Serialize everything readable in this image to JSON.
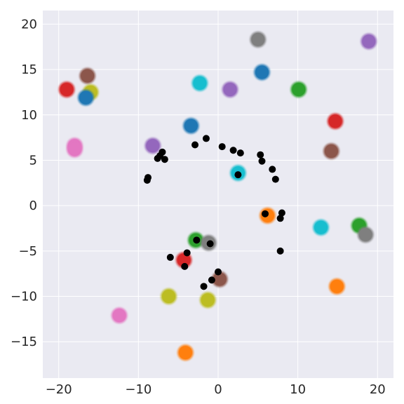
{
  "chart_data": {
    "type": "scatter",
    "title": "",
    "xlabel": "",
    "ylabel": "",
    "xlim": [
      -22,
      22
    ],
    "ylim": [
      -19,
      21.5
    ],
    "grid": true,
    "x_ticks": [
      -20,
      -10,
      0,
      10,
      20
    ],
    "x_tick_labels": [
      "−20",
      "−10",
      "0",
      "10",
      "20"
    ],
    "y_ticks": [
      -15,
      -10,
      -5,
      0,
      5,
      10,
      15,
      20
    ],
    "y_tick_labels": [
      "−15",
      "−10",
      "−5",
      "0",
      "5",
      "10",
      "15",
      "20"
    ],
    "colors": {
      "background": "#eaeaf2",
      "grid": "#ffffff",
      "black_points": "#000000"
    },
    "clusters": [
      {
        "color": "#7f7f7f",
        "x": 5.0,
        "y": 18.3
      },
      {
        "color": "#9467bd",
        "x": 18.9,
        "y": 18.1
      },
      {
        "color": "#8c564b",
        "x": -16.4,
        "y": 14.3
      },
      {
        "color": "#1f77b4",
        "x": 5.5,
        "y": 14.7
      },
      {
        "color": "#d62728",
        "x": -19.0,
        "y": 12.8
      },
      {
        "color": "#bcbd22",
        "x": -16.0,
        "y": 12.5
      },
      {
        "color": "#1f77b4",
        "x": -16.6,
        "y": 11.9
      },
      {
        "color": "#17becf",
        "x": -2.3,
        "y": 13.5
      },
      {
        "color": "#9467bd",
        "x": 1.5,
        "y": 12.8
      },
      {
        "color": "#2ca02c",
        "x": 10.1,
        "y": 12.8
      },
      {
        "color": "#d62728",
        "x": 14.7,
        "y": 9.3
      },
      {
        "color": "#1f77b4",
        "x": -3.4,
        "y": 8.8
      },
      {
        "color": "#e377c2",
        "x": -18.0,
        "y": 6.6
      },
      {
        "color": "#e377c2",
        "x": -18.0,
        "y": 6.2
      },
      {
        "color": "#9467bd",
        "x": -8.2,
        "y": 6.6
      },
      {
        "color": "#8c564b",
        "x": 14.2,
        "y": 6.0
      },
      {
        "color": "#17becf",
        "x": 2.5,
        "y": 3.6
      },
      {
        "color": "#ff7f0e",
        "x": 6.2,
        "y": -1.1
      },
      {
        "color": "#17becf",
        "x": 12.9,
        "y": -2.4
      },
      {
        "color": "#2ca02c",
        "x": 17.7,
        "y": -2.2
      },
      {
        "color": "#7f7f7f",
        "x": 18.5,
        "y": -3.2
      },
      {
        "color": "#2ca02c",
        "x": -2.8,
        "y": -3.8
      },
      {
        "color": "#7f7f7f",
        "x": -1.2,
        "y": -4.1
      },
      {
        "color": "#d62728",
        "x": -4.3,
        "y": -6.0
      },
      {
        "color": "#8c564b",
        "x": 0.2,
        "y": -8.1
      },
      {
        "color": "#bcbd22",
        "x": -6.2,
        "y": -10.0
      },
      {
        "color": "#bcbd22",
        "x": -1.3,
        "y": -10.4
      },
      {
        "color": "#ff7f0e",
        "x": 14.9,
        "y": -8.9
      },
      {
        "color": "#e377c2",
        "x": -12.4,
        "y": -12.1
      },
      {
        "color": "#ff7f0e",
        "x": -4.1,
        "y": -16.2
      }
    ],
    "black_points": [
      {
        "x": -8.9,
        "y": 2.8
      },
      {
        "x": -8.8,
        "y": 3.1
      },
      {
        "x": -7.6,
        "y": 5.2
      },
      {
        "x": -7.3,
        "y": 5.5
      },
      {
        "x": -7.0,
        "y": 5.9
      },
      {
        "x": -6.7,
        "y": 5.1
      },
      {
        "x": -2.9,
        "y": 6.7
      },
      {
        "x": -1.5,
        "y": 7.4
      },
      {
        "x": 0.5,
        "y": 6.5
      },
      {
        "x": 1.9,
        "y": 6.1
      },
      {
        "x": 2.8,
        "y": 5.8
      },
      {
        "x": 5.3,
        "y": 5.6
      },
      {
        "x": 5.5,
        "y": 4.9
      },
      {
        "x": 6.8,
        "y": 4.0
      },
      {
        "x": 7.2,
        "y": 2.9
      },
      {
        "x": 2.5,
        "y": 3.4
      },
      {
        "x": 5.9,
        "y": -0.9
      },
      {
        "x": 8.0,
        "y": -0.8
      },
      {
        "x": 7.8,
        "y": -1.4
      },
      {
        "x": 7.8,
        "y": -5.0
      },
      {
        "x": -2.7,
        "y": -3.8
      },
      {
        "x": -1.0,
        "y": -4.2
      },
      {
        "x": -3.9,
        "y": -5.2
      },
      {
        "x": -6.0,
        "y": -5.7
      },
      {
        "x": -4.2,
        "y": -6.7
      },
      {
        "x": 0.0,
        "y": -7.3
      },
      {
        "x": -0.8,
        "y": -8.2
      },
      {
        "x": -1.8,
        "y": -8.9
      }
    ]
  }
}
